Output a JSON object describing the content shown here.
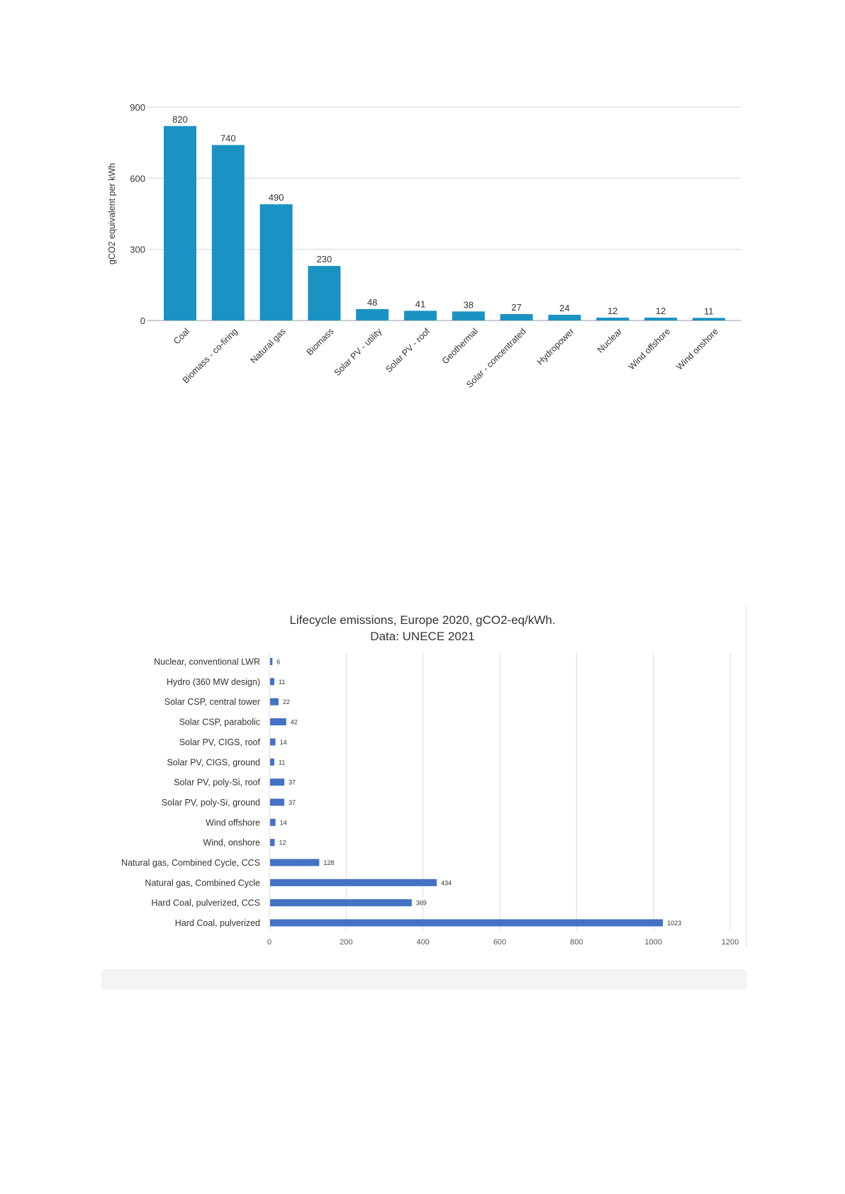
{
  "chart_data": [
    {
      "type": "bar",
      "orientation": "vertical",
      "title": "",
      "xlabel": "",
      "ylabel": "gCO2 equivalent per kWh",
      "ylim": [
        0,
        900
      ],
      "yticks": [
        0,
        300,
        600,
        900
      ],
      "grid": true,
      "color": "#1a93c3",
      "categories": [
        "Coal",
        "Biomass - co-firing",
        "Natural gas",
        "Biomass",
        "Solar PV - utility",
        "Solar PV - roof",
        "Geothermal",
        "Solar - concentrated",
        "Hydropower",
        "Nuclear",
        "Wind offshore",
        "Wind onshore"
      ],
      "values": [
        820,
        740,
        490,
        230,
        48,
        41,
        38,
        27,
        24,
        12,
        12,
        11
      ]
    },
    {
      "type": "bar",
      "orientation": "horizontal",
      "title": "Lifecycle emissions, Europe 2020, gCO2-eq/kWh.",
      "subtitle": "Data: UNECE 2021",
      "xlabel": "",
      "ylabel": "",
      "xlim": [
        0,
        1200
      ],
      "xticks": [
        0,
        200,
        400,
        600,
        800,
        1000,
        1200
      ],
      "grid": true,
      "color": "#4472c4",
      "categories": [
        "Nuclear, conventional LWR",
        "Hydro (360 MW design)",
        "Solar CSP, central tower",
        "Solar CSP, parabolic",
        "Solar PV, CIGS, roof",
        "Solar PV, CIGS, ground",
        "Solar PV, poly-Si, roof",
        "Solar PV, poly-Si, ground",
        "Wind offshore",
        "Wind, onshore",
        "Natural gas, Combined Cycle, CCS",
        "Natural gas, Combined Cycle",
        "Hard Coal, pulverized, CCS",
        "Hard Coal, pulverized"
      ],
      "values": [
        6,
        11,
        22,
        42,
        14,
        11,
        37,
        37,
        14,
        12,
        128,
        434,
        369,
        1023
      ]
    }
  ]
}
